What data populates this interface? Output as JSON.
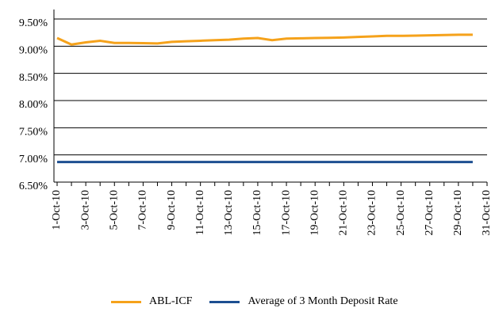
{
  "chart_data": {
    "type": "line",
    "categories": [
      "1-Oct-10",
      null,
      "3-Oct-10",
      null,
      "5-Oct-10",
      null,
      "7-Oct-10",
      null,
      "9-Oct-10",
      null,
      "11-Oct-10",
      null,
      "13-Oct-10",
      null,
      "15-Oct-10",
      null,
      "17-Oct-10",
      null,
      "19-Oct-10",
      null,
      "21-Oct-10",
      null,
      "23-Oct-10",
      null,
      "25-Oct-10",
      null,
      "27-Oct-10",
      null,
      "29-Oct-10",
      null,
      "31-Oct-10"
    ],
    "series": [
      {
        "name": "ABL-ICF",
        "color": "#f5a21b",
        "values": [
          9.15,
          9.03,
          9.07,
          9.1,
          9.06,
          9.06,
          9.055,
          9.05,
          9.08,
          9.09,
          9.1,
          9.11,
          9.12,
          9.14,
          9.15,
          9.11,
          9.14,
          9.145,
          9.15,
          9.155,
          9.16,
          9.17,
          9.18,
          9.19,
          9.19,
          9.195,
          9.2,
          9.205,
          9.21,
          9.21,
          null
        ]
      },
      {
        "name": "Average of 3 Month Deposit Rate",
        "color": "#1d4f91",
        "values": [
          6.87,
          6.87,
          6.87,
          6.87,
          6.87,
          6.87,
          6.87,
          6.87,
          6.87,
          6.87,
          6.87,
          6.87,
          6.87,
          6.87,
          6.87,
          6.87,
          6.87,
          6.87,
          6.87,
          6.87,
          6.87,
          6.87,
          6.87,
          6.87,
          6.87,
          6.87,
          6.87,
          6.87,
          6.87,
          6.87,
          null
        ]
      }
    ],
    "ylim": [
      6.5,
      9.5
    ],
    "yticks": [
      {
        "value": 6.5,
        "label": "6.50%"
      },
      {
        "value": 7.0,
        "label": "7.00%"
      },
      {
        "value": 7.5,
        "label": "7.50%"
      },
      {
        "value": 8.0,
        "label": "8.00%"
      },
      {
        "value": 8.5,
        "label": "8.50%"
      },
      {
        "value": 9.0,
        "label": "9.00%"
      },
      {
        "value": 9.5,
        "label": "9.50%"
      }
    ],
    "grid": true
  }
}
